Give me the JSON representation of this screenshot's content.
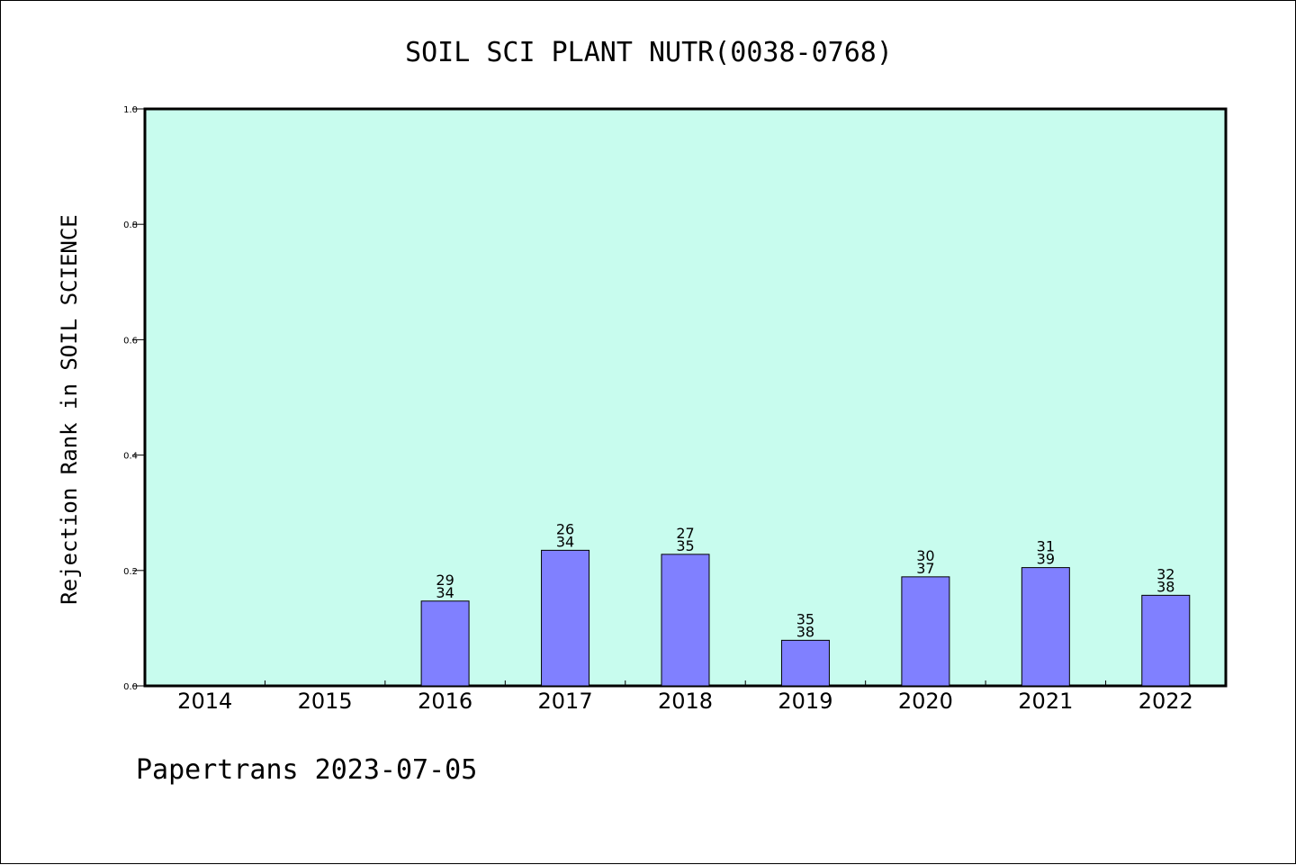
{
  "chart_data": {
    "type": "bar",
    "title": "SOIL SCI PLANT NUTR(0038-0768)",
    "xlabel": "",
    "ylabel": "Rejection Rank in SOIL SCIENCE",
    "footer": "Papertrans 2023-07-05",
    "ylim": [
      0,
      1.0
    ],
    "yticks": [
      "0.0",
      "0.2",
      "0.4",
      "0.6",
      "0.8",
      "1.0"
    ],
    "categories": [
      "2014",
      "2015",
      "2016",
      "2017",
      "2018",
      "2019",
      "2020",
      "2021",
      "2022"
    ],
    "values": [
      null,
      null,
      0.147,
      0.235,
      0.228,
      0.079,
      0.189,
      0.205,
      0.157
    ],
    "bar_labels": [
      null,
      null,
      [
        "29",
        "34"
      ],
      [
        "26",
        "34"
      ],
      [
        "27",
        "35"
      ],
      [
        "35",
        "38"
      ],
      [
        "30",
        "37"
      ],
      [
        "31",
        "39"
      ],
      [
        "32",
        "38"
      ]
    ],
    "grid": false,
    "colors": {
      "plot_background": "#c8fcee",
      "bar_fill": "#8080ff",
      "bar_stroke": "#000000"
    }
  }
}
